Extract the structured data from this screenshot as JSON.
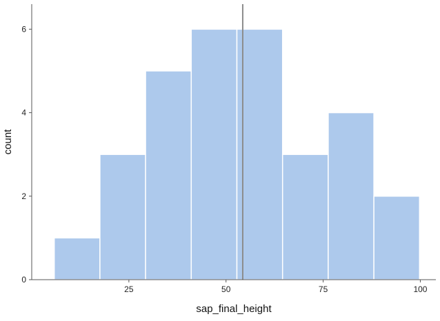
{
  "chart_data": {
    "type": "bar",
    "subtype": "histogram",
    "title": "",
    "xlabel": "sap_final_height",
    "ylabel": "count",
    "bins": [
      {
        "start": 5.8,
        "end": 17.55,
        "count": 1
      },
      {
        "start": 17.55,
        "end": 29.3,
        "count": 3
      },
      {
        "start": 29.3,
        "end": 41.05,
        "count": 5
      },
      {
        "start": 41.05,
        "end": 52.8,
        "count": 6
      },
      {
        "start": 52.8,
        "end": 64.55,
        "count": 6
      },
      {
        "start": 64.55,
        "end": 76.3,
        "count": 3
      },
      {
        "start": 76.3,
        "end": 88.05,
        "count": 4
      },
      {
        "start": 88.05,
        "end": 99.8,
        "count": 2
      }
    ],
    "reference_line": {
      "orientation": "vertical",
      "x": 54.3
    },
    "xlim": [
      0,
      104
    ],
    "ylim": [
      0,
      6.6
    ],
    "x_ticks": [
      25,
      50,
      75,
      100
    ],
    "x_tick_labels": [
      "25",
      "50",
      "75",
      "100"
    ],
    "y_ticks": [
      0,
      2,
      4,
      6
    ],
    "y_tick_labels": [
      "0",
      "2",
      "4",
      "6"
    ],
    "grid": false,
    "legend": "none",
    "colors": {
      "bar_fill": "#adc9ec",
      "bar_edge": "#ffffff",
      "reference_line": "#8c8c8c",
      "axis": "#555555"
    }
  }
}
